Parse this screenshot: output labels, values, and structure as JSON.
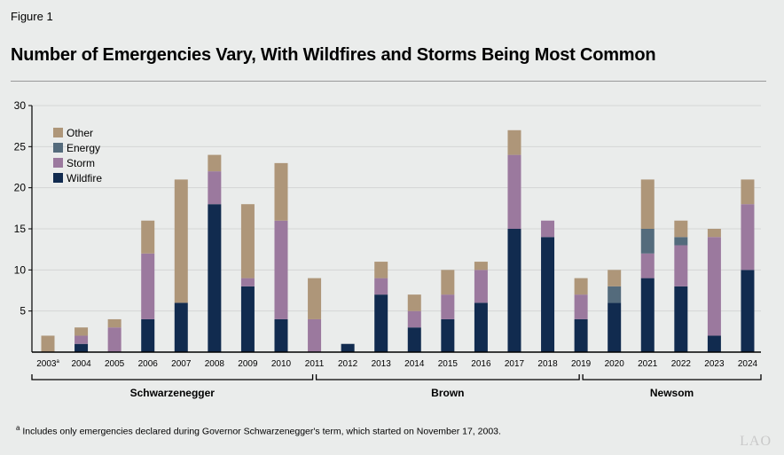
{
  "figure_label": "Figure 1",
  "title": "Number of Emergencies Vary, With Wildfires and Storms Being Most Common",
  "footnote": {
    "marker": "a",
    "text": "Includes only emergencies declared during Governor Schwarzenegger's term, which started on November 17, 2003."
  },
  "logo": "LAO",
  "colors": {
    "Wildfire": "#112b4f",
    "Storm": "#9b799e",
    "Energy": "#546b7c",
    "Other": "#ae9679",
    "background": "#eaeceb"
  },
  "chart_data": {
    "type": "bar",
    "stacked": true,
    "categories": [
      "2003",
      "2004",
      "2005",
      "2006",
      "2007",
      "2008",
      "2009",
      "2010",
      "2011",
      "2012",
      "2013",
      "2014",
      "2015",
      "2016",
      "2017",
      "2018",
      "2019",
      "2020",
      "2021",
      "2022",
      "2023",
      "2024"
    ],
    "category_superscripts": {
      "2003": "a"
    },
    "series": [
      {
        "name": "Wildfire",
        "values": [
          0,
          1,
          0,
          4,
          6,
          18,
          8,
          4,
          0,
          1,
          7,
          3,
          4,
          6,
          15,
          14,
          4,
          6,
          9,
          8,
          2,
          10
        ]
      },
      {
        "name": "Storm",
        "values": [
          0,
          1,
          3,
          8,
          0,
          4,
          1,
          12,
          4,
          0,
          2,
          2,
          3,
          4,
          9,
          2,
          3,
          0,
          3,
          5,
          12,
          8
        ]
      },
      {
        "name": "Energy",
        "values": [
          0,
          0,
          0,
          0,
          0,
          0,
          0,
          0,
          0,
          0,
          0,
          0,
          0,
          0,
          0,
          0,
          0,
          2,
          3,
          1,
          0,
          0
        ]
      },
      {
        "name": "Other",
        "values": [
          2,
          1,
          1,
          4,
          15,
          2,
          9,
          7,
          5,
          0,
          2,
          2,
          3,
          1,
          3,
          0,
          2,
          2,
          6,
          2,
          1,
          3
        ]
      }
    ],
    "legend_order": [
      "Other",
      "Energy",
      "Storm",
      "Wildfire"
    ],
    "legend_placement": "top-left",
    "ylim": [
      0,
      30
    ],
    "yticks": [
      5,
      10,
      15,
      20,
      25,
      30
    ],
    "grid": true,
    "groups": [
      {
        "label": "Schwarzenegger",
        "from": "2003",
        "to": "2011"
      },
      {
        "label": "Brown",
        "from": "2011",
        "to": "2019"
      },
      {
        "label": "Newsom",
        "from": "2019",
        "to": "2024"
      }
    ]
  }
}
